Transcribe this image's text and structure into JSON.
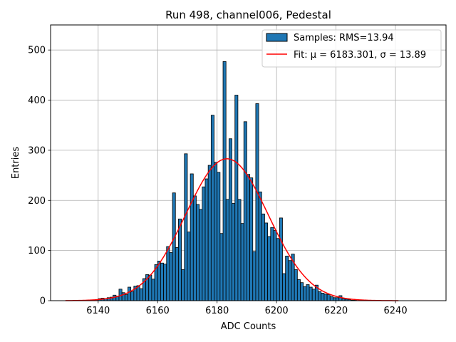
{
  "chart_data": {
    "type": "bar",
    "title": "Run 498, channel006, Pedestal",
    "xlabel": "ADC Counts",
    "ylabel": "Entries",
    "xlim": [
      6124,
      6257
    ],
    "ylim": [
      0,
      550
    ],
    "xticks": [
      6140,
      6160,
      6180,
      6200,
      6220,
      6240
    ],
    "yticks": [
      0,
      100,
      200,
      300,
      400,
      500
    ],
    "grid": true,
    "legend_position": "top-right",
    "bin_width": 1,
    "bins": [
      {
        "x": 6138,
        "y": 1
      },
      {
        "x": 6139,
        "y": 2
      },
      {
        "x": 6140,
        "y": 4
      },
      {
        "x": 6141,
        "y": 5
      },
      {
        "x": 6142,
        "y": 4
      },
      {
        "x": 6143,
        "y": 6
      },
      {
        "x": 6144,
        "y": 7
      },
      {
        "x": 6145,
        "y": 11
      },
      {
        "x": 6146,
        "y": 9
      },
      {
        "x": 6147,
        "y": 23
      },
      {
        "x": 6148,
        "y": 16
      },
      {
        "x": 6149,
        "y": 12
      },
      {
        "x": 6150,
        "y": 27
      },
      {
        "x": 6151,
        "y": 18
      },
      {
        "x": 6152,
        "y": 29
      },
      {
        "x": 6153,
        "y": 30
      },
      {
        "x": 6154,
        "y": 24
      },
      {
        "x": 6155,
        "y": 44
      },
      {
        "x": 6156,
        "y": 52
      },
      {
        "x": 6157,
        "y": 51
      },
      {
        "x": 6158,
        "y": 43
      },
      {
        "x": 6159,
        "y": 72
      },
      {
        "x": 6160,
        "y": 79
      },
      {
        "x": 6161,
        "y": 75
      },
      {
        "x": 6162,
        "y": 73
      },
      {
        "x": 6163,
        "y": 108
      },
      {
        "x": 6164,
        "y": 96
      },
      {
        "x": 6165,
        "y": 215
      },
      {
        "x": 6166,
        "y": 106
      },
      {
        "x": 6167,
        "y": 163
      },
      {
        "x": 6168,
        "y": 62
      },
      {
        "x": 6169,
        "y": 293
      },
      {
        "x": 6170,
        "y": 137
      },
      {
        "x": 6171,
        "y": 253
      },
      {
        "x": 6172,
        "y": 209
      },
      {
        "x": 6173,
        "y": 192
      },
      {
        "x": 6174,
        "y": 182
      },
      {
        "x": 6175,
        "y": 227
      },
      {
        "x": 6176,
        "y": 243
      },
      {
        "x": 6177,
        "y": 270
      },
      {
        "x": 6178,
        "y": 370
      },
      {
        "x": 6179,
        "y": 276
      },
      {
        "x": 6180,
        "y": 256
      },
      {
        "x": 6181,
        "y": 134
      },
      {
        "x": 6182,
        "y": 477
      },
      {
        "x": 6183,
        "y": 202
      },
      {
        "x": 6184,
        "y": 323
      },
      {
        "x": 6185,
        "y": 194
      },
      {
        "x": 6186,
        "y": 410
      },
      {
        "x": 6187,
        "y": 202
      },
      {
        "x": 6188,
        "y": 154
      },
      {
        "x": 6189,
        "y": 357
      },
      {
        "x": 6190,
        "y": 252
      },
      {
        "x": 6191,
        "y": 245
      },
      {
        "x": 6192,
        "y": 98
      },
      {
        "x": 6193,
        "y": 393
      },
      {
        "x": 6194,
        "y": 217
      },
      {
        "x": 6195,
        "y": 173
      },
      {
        "x": 6196,
        "y": 155
      },
      {
        "x": 6197,
        "y": 128
      },
      {
        "x": 6198,
        "y": 146
      },
      {
        "x": 6199,
        "y": 140
      },
      {
        "x": 6200,
        "y": 124
      },
      {
        "x": 6201,
        "y": 165
      },
      {
        "x": 6202,
        "y": 54
      },
      {
        "x": 6203,
        "y": 89
      },
      {
        "x": 6204,
        "y": 80
      },
      {
        "x": 6205,
        "y": 93
      },
      {
        "x": 6206,
        "y": 62
      },
      {
        "x": 6207,
        "y": 42
      },
      {
        "x": 6208,
        "y": 36
      },
      {
        "x": 6209,
        "y": 28
      },
      {
        "x": 6210,
        "y": 32
      },
      {
        "x": 6211,
        "y": 27
      },
      {
        "x": 6212,
        "y": 23
      },
      {
        "x": 6213,
        "y": 31
      },
      {
        "x": 6214,
        "y": 18
      },
      {
        "x": 6215,
        "y": 15
      },
      {
        "x": 6216,
        "y": 13
      },
      {
        "x": 6217,
        "y": 12
      },
      {
        "x": 6218,
        "y": 8
      },
      {
        "x": 6219,
        "y": 6
      },
      {
        "x": 6220,
        "y": 6
      },
      {
        "x": 6221,
        "y": 10
      },
      {
        "x": 6222,
        "y": 4
      },
      {
        "x": 6223,
        "y": 3
      },
      {
        "x": 6224,
        "y": 2
      },
      {
        "x": 6225,
        "y": 1
      },
      {
        "x": 6226,
        "y": 1
      }
    ],
    "fit": {
      "mu": 6183.301,
      "sigma": 13.89,
      "amplitude": 283,
      "range": [
        6129,
        6241
      ]
    },
    "series": [
      {
        "name": "Samples: RMS=13.94",
        "kind": "histogram",
        "color": "#1f77b4"
      },
      {
        "name": "Fit: μ = 6183.301, σ = 13.89",
        "kind": "line",
        "color": "#ff0000"
      }
    ]
  }
}
